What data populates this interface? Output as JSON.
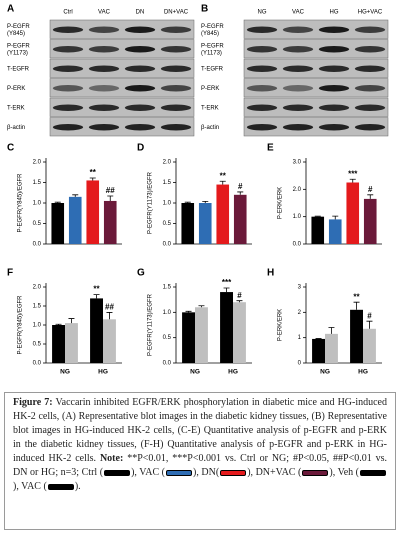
{
  "blots": [
    {
      "panel": "A",
      "lanes": [
        "Ctrl",
        "VAC",
        "DN",
        "DN+VAC"
      ],
      "rows": [
        [
          "P-EGFR",
          "(Y845)"
        ],
        [
          "P-EGFR",
          "(Y1173)"
        ],
        [
          "T-EGFR"
        ],
        [
          "P-ERK"
        ],
        [
          "T-ERK"
        ],
        [
          "β-actin"
        ]
      ]
    },
    {
      "panel": "B",
      "lanes": [
        "NG",
        "VAC",
        "HG",
        "HG+VAC"
      ],
      "rows": [
        [
          "P-EGFR",
          "(Y845)"
        ],
        [
          "P-EGFR",
          "(Y1173)"
        ],
        [
          "T-EGFR"
        ],
        [
          "P-ERK"
        ],
        [
          "T-ERK"
        ],
        [
          "β-actin"
        ]
      ]
    }
  ],
  "chart_data": [
    {
      "type": "bar",
      "panel": "C",
      "ylabel": "P-EGFR(Y845)/EGFR",
      "ylim": [
        0,
        2
      ],
      "yticks": [
        {
          "value": 0,
          "label": "0.0"
        },
        {
          "value": 0.5,
          "label": "0.5"
        },
        {
          "value": 1,
          "label": "1.0"
        },
        {
          "value": 1.5,
          "label": "1.5"
        },
        {
          "value": 2,
          "label": "2.0"
        }
      ],
      "values": [
        1.0,
        1.15,
        1.55,
        1.05
      ],
      "errors": [
        0.02,
        0.05,
        0.06,
        0.12
      ],
      "colors": [
        "#000000",
        "#2e6db4",
        "#e41a1c",
        "#6b1a3a"
      ],
      "annotations": [
        null,
        null,
        "**",
        "##"
      ]
    },
    {
      "type": "bar",
      "panel": "D",
      "ylabel": "P-EGFR(Y1173)/EGFR",
      "ylim": [
        0,
        2
      ],
      "yticks": [
        {
          "value": 0,
          "label": "0.0"
        },
        {
          "value": 0.5,
          "label": "0.5"
        },
        {
          "value": 1,
          "label": "1.0"
        },
        {
          "value": 1.5,
          "label": "1.5"
        },
        {
          "value": 2,
          "label": "2.0"
        }
      ],
      "values": [
        1.0,
        1.0,
        1.45,
        1.2
      ],
      "errors": [
        0.02,
        0.04,
        0.08,
        0.07
      ],
      "colors": [
        "#000000",
        "#2e6db4",
        "#e41a1c",
        "#6b1a3a"
      ],
      "annotations": [
        null,
        null,
        "**",
        "#"
      ]
    },
    {
      "type": "bar",
      "panel": "E",
      "ylabel": "P-ERK/ERK",
      "ylim": [
        0,
        3
      ],
      "yticks": [
        {
          "value": 0,
          "label": "0.0"
        },
        {
          "value": 1,
          "label": "1.0"
        },
        {
          "value": 2,
          "label": "2.0"
        },
        {
          "value": 3,
          "label": "3.0"
        }
      ],
      "values": [
        1.0,
        0.9,
        2.25,
        1.65
      ],
      "errors": [
        0.02,
        0.12,
        0.12,
        0.15
      ],
      "colors": [
        "#000000",
        "#2e6db4",
        "#e41a1c",
        "#6b1a3a"
      ],
      "annotations": [
        null,
        null,
        "***",
        "#"
      ]
    },
    {
      "type": "grouped_bar",
      "panel": "F",
      "ylabel": "P-EGFR(Y845)/EGFR",
      "ylim": [
        0,
        2
      ],
      "yticks": [
        {
          "value": 0,
          "label": "0.0"
        },
        {
          "value": 0.5,
          "label": "0.5"
        },
        {
          "value": 1,
          "label": "1.0"
        },
        {
          "value": 1.5,
          "label": "1.5"
        },
        {
          "value": 2,
          "label": "2.0"
        }
      ],
      "categories": [
        "NG",
        "HG"
      ],
      "series": [
        {
          "color": "#000000",
          "values": [
            1.0,
            1.7
          ],
          "errors": [
            0.02,
            0.1
          ],
          "annotations": [
            null,
            "**"
          ]
        },
        {
          "color": "#bfbfbf",
          "values": [
            1.05,
            1.15
          ],
          "errors": [
            0.12,
            0.18
          ],
          "annotations": [
            null,
            "##"
          ]
        }
      ]
    },
    {
      "type": "grouped_bar",
      "panel": "G",
      "ylabel": "P-EGFR(Y1173)/EGFR",
      "ylim": [
        0,
        1.5
      ],
      "yticks": [
        {
          "value": 0,
          "label": "0.0"
        },
        {
          "value": 0.5,
          "label": "0.5"
        },
        {
          "value": 1,
          "label": "1.0"
        },
        {
          "value": 1.5,
          "label": "1.5"
        }
      ],
      "categories": [
        "NG",
        "HG"
      ],
      "series": [
        {
          "color": "#000000",
          "values": [
            1.0,
            1.4
          ],
          "errors": [
            0.02,
            0.08
          ],
          "annotations": [
            null,
            "***"
          ]
        },
        {
          "color": "#bfbfbf",
          "values": [
            1.1,
            1.2
          ],
          "errors": [
            0.03,
            0.03
          ],
          "annotations": [
            null,
            "#"
          ]
        }
      ]
    },
    {
      "type": "grouped_bar",
      "panel": "H",
      "ylabel": "P-ERK/ERK",
      "ylim": [
        0,
        3
      ],
      "yticks": [
        0,
        1,
        2,
        3
      ],
      "categories": [
        "NG",
        "HG"
      ],
      "series": [
        {
          "color": "#000000",
          "values": [
            0.95,
            2.1
          ],
          "errors": [
            0.02,
            0.3
          ],
          "annotations": [
            null,
            "**"
          ]
        },
        {
          "color": "#bfbfbf",
          "values": [
            1.15,
            1.35
          ],
          "errors": [
            0.25,
            0.3
          ],
          "annotations": [
            null,
            "#"
          ]
        }
      ]
    }
  ],
  "caption": {
    "label": "Figure 7:",
    "text": "Vaccarin inhibited EGFR/ERK phosphorylation in diabetic mice and HG-induced HK-2 cells, (A) Representative blot images in the diabetic kidney tissues, (B) Representative blot images in HG-induced HK-2 cells, (C-E) Quantitative analysis of p-EGFR and p-ERK in the diabetic kidney tissues, (F-H) Quantitative analysis of p-EGFR and p-ERK in HG-induced HK-2 cells.",
    "note_label": "Note:",
    "note": "**P<0.01, ***P<0.001 vs. Ctrl or NG; #P<0.05, ##P<0.01 vs. DN or HG; n=3;",
    "key": [
      {
        "text": "Ctrl (",
        "color": "#000000"
      },
      {
        "text": "), VAC (",
        "color": "#2e6db4"
      },
      {
        "text": "), DN(",
        "color": "#e41a1c"
      },
      {
        "text": "), DN+VAC (",
        "color": "#6b1a3a"
      },
      {
        "text": "), Veh (",
        "color": "#000000"
      },
      {
        "text": "), VAC (",
        "color": "#000000"
      }
    ],
    "key_end": ")."
  }
}
